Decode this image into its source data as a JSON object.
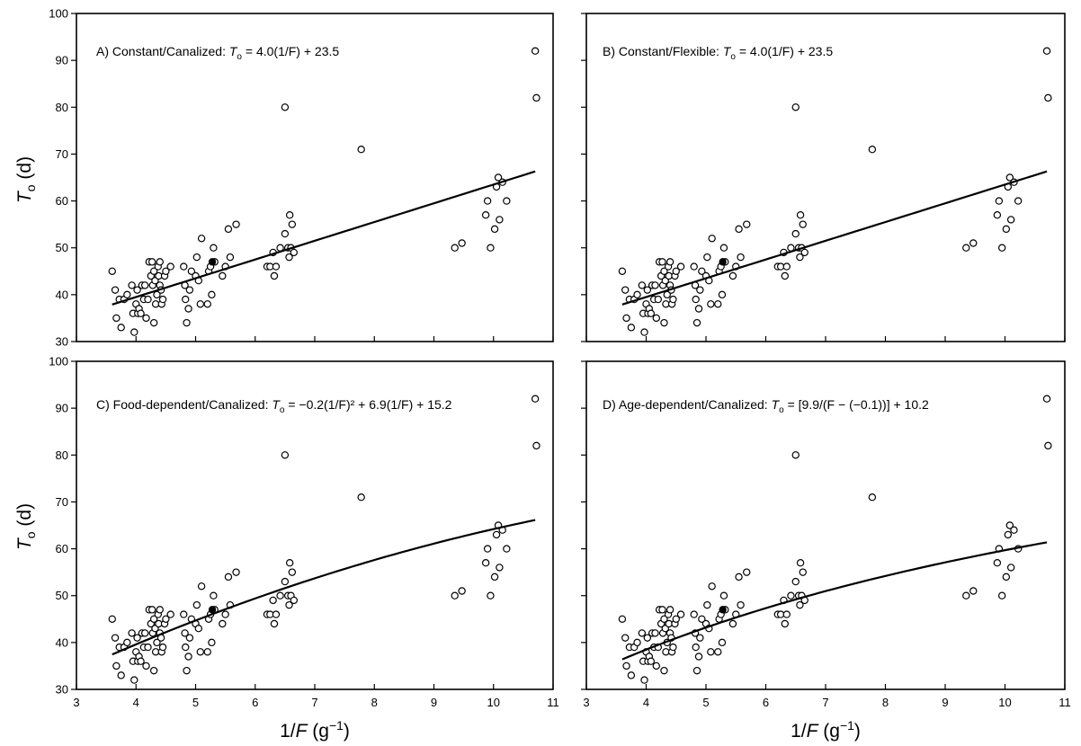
{
  "y_axis_label_main": "T",
  "y_axis_label_sub": "o",
  "y_axis_label_unit": " (d)",
  "x_axis_label_main": "1/",
  "x_axis_label_var": "F",
  "x_axis_label_unit": " (g",
  "x_axis_label_exp": "−1",
  "x_axis_label_close": ")",
  "chart_data": [
    {
      "type": "scatter",
      "panel": "A",
      "title": "",
      "annotation": {
        "prefix": "A) Constant/Canalized: ",
        "var": "T",
        "sub": "o",
        "equation": " = 4.0(1/F) + 23.5"
      },
      "xlabel": "1/F (g−1)",
      "ylabel": "To (d)",
      "xlim": [
        3,
        11
      ],
      "ylim": [
        30,
        100
      ],
      "xticks": [
        3,
        4,
        5,
        6,
        7,
        8,
        9,
        10,
        11
      ],
      "yticks": [
        30,
        40,
        50,
        60,
        70,
        80,
        90,
        100
      ],
      "fit": {
        "model": "linear",
        "a": 4.0,
        "b": 23.5,
        "x_range": [
          3.6,
          10.7
        ]
      },
      "filled_points": [
        [
          5.28,
          47
        ]
      ]
    },
    {
      "type": "scatter",
      "panel": "B",
      "title": "",
      "annotation": {
        "prefix": "B) Constant/Flexible: ",
        "var": "T",
        "sub": "o",
        "equation": " = 4.0(1/F) + 23.5"
      },
      "xlabel": "1/F (g−1)",
      "ylabel": "To (d)",
      "xlim": [
        3,
        11
      ],
      "ylim": [
        30,
        100
      ],
      "xticks": [
        3,
        4,
        5,
        6,
        7,
        8,
        9,
        10,
        11
      ],
      "yticks": [
        30,
        40,
        50,
        60,
        70,
        80,
        90,
        100
      ],
      "fit": {
        "model": "linear",
        "a": 4.0,
        "b": 23.5,
        "x_range": [
          3.6,
          10.7
        ]
      },
      "filled_points": [
        [
          5.28,
          47
        ]
      ]
    },
    {
      "type": "scatter",
      "panel": "C",
      "title": "",
      "annotation": {
        "prefix": "C) Food-dependent/Canalized: ",
        "var": "T",
        "sub": "o",
        "equation": " = −0.2(1/F)² + 6.9(1/F) + 15.2"
      },
      "xlabel": "1/F (g−1)",
      "ylabel": "To (d)",
      "xlim": [
        3,
        11
      ],
      "ylim": [
        30,
        100
      ],
      "xticks": [
        3,
        4,
        5,
        6,
        7,
        8,
        9,
        10,
        11
      ],
      "yticks": [
        30,
        40,
        50,
        60,
        70,
        80,
        90,
        100
      ],
      "fit": {
        "model": "quadratic",
        "a": -0.2,
        "b": 6.9,
        "c": 15.2,
        "x_range": [
          3.6,
          10.7
        ]
      },
      "filled_points": [
        [
          5.28,
          47
        ]
      ]
    },
    {
      "type": "scatter",
      "panel": "D",
      "title": "",
      "annotation": {
        "prefix": "D) Age-dependent/Canalized: ",
        "var": "T",
        "sub": "o",
        "equation": " = [9.9/(F − (−0.1))] + 10.2"
      },
      "xlabel": "1/F (g−1)",
      "ylabel": "To (d)",
      "xlim": [
        3,
        11
      ],
      "ylim": [
        30,
        100
      ],
      "xticks": [
        3,
        4,
        5,
        6,
        7,
        8,
        9,
        10,
        11
      ],
      "yticks": [
        30,
        40,
        50,
        60,
        70,
        80,
        90,
        100
      ],
      "fit": {
        "model": "age",
        "a": 9.9,
        "b": -0.1,
        "c": 10.2,
        "x_range": [
          3.6,
          10.7
        ]
      },
      "filled_points": [
        [
          5.28,
          47
        ]
      ]
    }
  ],
  "observations": [
    [
      3.6,
      45
    ],
    [
      3.65,
      41
    ],
    [
      3.67,
      35
    ],
    [
      3.72,
      39
    ],
    [
      3.75,
      33
    ],
    [
      3.8,
      39
    ],
    [
      3.85,
      40
    ],
    [
      3.93,
      42
    ],
    [
      3.95,
      36
    ],
    [
      3.97,
      32
    ],
    [
      4.0,
      38
    ],
    [
      4.02,
      41
    ],
    [
      4.03,
      36
    ],
    [
      4.05,
      37
    ],
    [
      4.08,
      36
    ],
    [
      4.1,
      42
    ],
    [
      4.13,
      39
    ],
    [
      4.15,
      42
    ],
    [
      4.17,
      35
    ],
    [
      4.2,
      39
    ],
    [
      4.22,
      47
    ],
    [
      4.25,
      44
    ],
    [
      4.27,
      47
    ],
    [
      4.28,
      42
    ],
    [
      4.3,
      45
    ],
    [
      4.3,
      34
    ],
    [
      4.32,
      43
    ],
    [
      4.33,
      38
    ],
    [
      4.35,
      40
    ],
    [
      4.37,
      46
    ],
    [
      4.38,
      44
    ],
    [
      4.4,
      47
    ],
    [
      4.4,
      42
    ],
    [
      4.42,
      41
    ],
    [
      4.43,
      38
    ],
    [
      4.45,
      39
    ],
    [
      4.48,
      44
    ],
    [
      4.5,
      45
    ],
    [
      4.58,
      46
    ],
    [
      4.8,
      46
    ],
    [
      4.82,
      42
    ],
    [
      4.83,
      39
    ],
    [
      4.85,
      34
    ],
    [
      4.88,
      37
    ],
    [
      4.9,
      41
    ],
    [
      4.93,
      45
    ],
    [
      5.0,
      44
    ],
    [
      5.02,
      48
    ],
    [
      5.05,
      43
    ],
    [
      5.08,
      38
    ],
    [
      5.1,
      52
    ],
    [
      5.2,
      38
    ],
    [
      5.22,
      45
    ],
    [
      5.25,
      46
    ],
    [
      5.27,
      40
    ],
    [
      5.3,
      50
    ],
    [
      5.32,
      47
    ],
    [
      5.45,
      44
    ],
    [
      5.5,
      46
    ],
    [
      5.55,
      54
    ],
    [
      5.58,
      48
    ],
    [
      5.68,
      55
    ],
    [
      6.2,
      46
    ],
    [
      6.25,
      46
    ],
    [
      6.3,
      49
    ],
    [
      6.32,
      44
    ],
    [
      6.35,
      46
    ],
    [
      6.42,
      50
    ],
    [
      6.5,
      53
    ],
    [
      6.55,
      50
    ],
    [
      6.57,
      48
    ],
    [
      6.58,
      57
    ],
    [
      6.6,
      50
    ],
    [
      6.62,
      55
    ],
    [
      6.65,
      49
    ],
    [
      6.5,
      80
    ],
    [
      7.78,
      71
    ],
    [
      9.35,
      50
    ],
    [
      9.47,
      51
    ],
    [
      9.87,
      57
    ],
    [
      9.9,
      60
    ],
    [
      9.95,
      50
    ],
    [
      10.02,
      54
    ],
    [
      10.05,
      63
    ],
    [
      10.08,
      65
    ],
    [
      10.1,
      56
    ],
    [
      10.15,
      64
    ],
    [
      10.22,
      60
    ],
    [
      10.7,
      92
    ],
    [
      10.72,
      82
    ]
  ]
}
